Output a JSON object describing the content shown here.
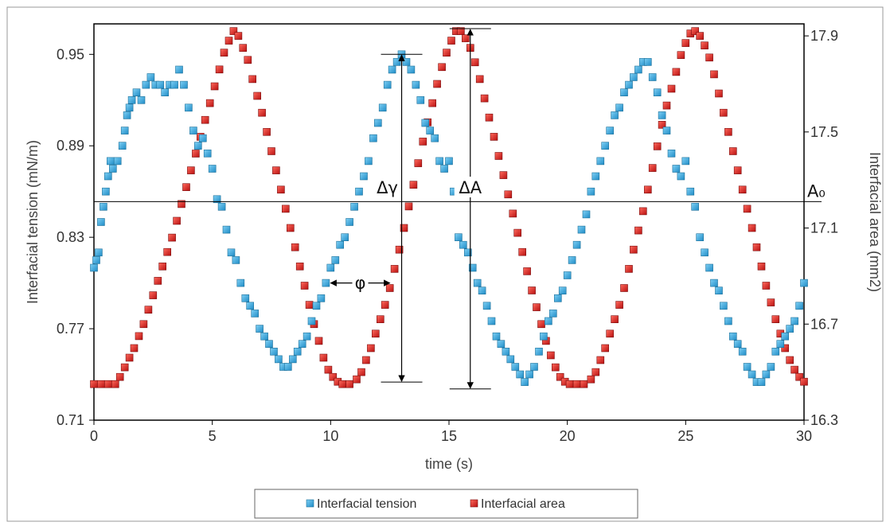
{
  "chart_data": {
    "type": "scatter",
    "xlabel": "time (s)",
    "ylabel_left": "Interfacial tension (mN/m)",
    "ylabel_right": "Interfacial area (mm2)",
    "xlim": [
      0,
      30
    ],
    "ylim_left": [
      0.71,
      0.97
    ],
    "ylim_right": [
      16.3,
      17.95
    ],
    "x_ticks": [
      "0",
      "5",
      "10",
      "15",
      "20",
      "25",
      "30"
    ],
    "y_ticks_left": [
      "0.71",
      "0.77",
      "0.83",
      "0.89",
      "0.95"
    ],
    "y_ticks_right": [
      "16.3",
      "16.7",
      "17.1",
      "17.5",
      "17.9"
    ],
    "grid": false,
    "legend_position": "bottom",
    "colors": {
      "tension": "#2a9fd8",
      "area": "#d42020"
    },
    "series": [
      {
        "name": "Interfacial tension",
        "axis": "left",
        "color": "#2a9fd8",
        "marker": "square",
        "period_s": 10,
        "points": [
          [
            0.0,
            0.81
          ],
          [
            0.1,
            0.815
          ],
          [
            0.2,
            0.82
          ],
          [
            0.3,
            0.84
          ],
          [
            0.4,
            0.85
          ],
          [
            0.5,
            0.86
          ],
          [
            0.6,
            0.87
          ],
          [
            0.7,
            0.88
          ],
          [
            0.8,
            0.875
          ],
          [
            1.0,
            0.88
          ],
          [
            1.2,
            0.89
          ],
          [
            1.3,
            0.9
          ],
          [
            1.4,
            0.91
          ],
          [
            1.5,
            0.915
          ],
          [
            1.6,
            0.92
          ],
          [
            1.8,
            0.925
          ],
          [
            2.0,
            0.92
          ],
          [
            2.2,
            0.93
          ],
          [
            2.4,
            0.935
          ],
          [
            2.6,
            0.93
          ],
          [
            2.8,
            0.93
          ],
          [
            3.0,
            0.925
          ],
          [
            3.2,
            0.93
          ],
          [
            3.4,
            0.93
          ],
          [
            3.6,
            0.94
          ],
          [
            3.8,
            0.93
          ],
          [
            4.0,
            0.915
          ],
          [
            4.2,
            0.9
          ],
          [
            4.4,
            0.89
          ],
          [
            4.6,
            0.895
          ],
          [
            4.8,
            0.885
          ],
          [
            5.0,
            0.875
          ],
          [
            5.2,
            0.855
          ],
          [
            5.4,
            0.85
          ],
          [
            5.6,
            0.835
          ],
          [
            5.8,
            0.82
          ],
          [
            6.0,
            0.815
          ],
          [
            6.2,
            0.8
          ],
          [
            6.4,
            0.79
          ],
          [
            6.6,
            0.785
          ],
          [
            6.8,
            0.78
          ],
          [
            7.0,
            0.77
          ],
          [
            7.2,
            0.765
          ],
          [
            7.4,
            0.76
          ],
          [
            7.6,
            0.755
          ],
          [
            7.8,
            0.75
          ],
          [
            8.0,
            0.745
          ],
          [
            8.2,
            0.745
          ],
          [
            8.4,
            0.75
          ],
          [
            8.6,
            0.755
          ],
          [
            8.8,
            0.76
          ],
          [
            9.0,
            0.765
          ],
          [
            9.2,
            0.775
          ],
          [
            9.4,
            0.785
          ],
          [
            9.6,
            0.79
          ],
          [
            9.8,
            0.8
          ],
          [
            10.0,
            0.81
          ],
          [
            10.2,
            0.815
          ],
          [
            10.4,
            0.825
          ],
          [
            10.6,
            0.83
          ],
          [
            10.8,
            0.84
          ],
          [
            11.0,
            0.85
          ],
          [
            11.2,
            0.86
          ],
          [
            11.4,
            0.87
          ],
          [
            11.6,
            0.88
          ],
          [
            11.8,
            0.895
          ],
          [
            12.0,
            0.905
          ],
          [
            12.2,
            0.915
          ],
          [
            12.4,
            0.93
          ],
          [
            12.6,
            0.94
          ],
          [
            12.8,
            0.945
          ],
          [
            13.0,
            0.95
          ],
          [
            13.2,
            0.945
          ],
          [
            13.4,
            0.94
          ],
          [
            13.6,
            0.93
          ],
          [
            13.8,
            0.92
          ],
          [
            14.0,
            0.905
          ],
          [
            14.2,
            0.9
          ],
          [
            14.4,
            0.895
          ],
          [
            14.6,
            0.88
          ],
          [
            14.8,
            0.875
          ],
          [
            15.0,
            0.88
          ],
          [
            15.2,
            0.86
          ],
          [
            15.4,
            0.83
          ],
          [
            15.6,
            0.825
          ],
          [
            15.8,
            0.82
          ],
          [
            16.0,
            0.81
          ],
          [
            16.2,
            0.8
          ],
          [
            16.4,
            0.795
          ],
          [
            16.6,
            0.785
          ],
          [
            16.8,
            0.775
          ],
          [
            17.0,
            0.765
          ],
          [
            17.2,
            0.76
          ],
          [
            17.4,
            0.755
          ],
          [
            17.6,
            0.75
          ],
          [
            17.8,
            0.745
          ],
          [
            18.0,
            0.74
          ],
          [
            18.2,
            0.735
          ],
          [
            18.4,
            0.74
          ],
          [
            18.6,
            0.745
          ],
          [
            18.8,
            0.755
          ],
          [
            19.0,
            0.765
          ],
          [
            19.2,
            0.775
          ],
          [
            19.4,
            0.78
          ],
          [
            19.6,
            0.79
          ],
          [
            19.8,
            0.795
          ],
          [
            20.0,
            0.805
          ],
          [
            20.2,
            0.815
          ],
          [
            20.4,
            0.825
          ],
          [
            20.6,
            0.835
          ],
          [
            20.8,
            0.845
          ],
          [
            21.0,
            0.86
          ],
          [
            21.2,
            0.87
          ],
          [
            21.4,
            0.88
          ],
          [
            21.6,
            0.89
          ],
          [
            21.8,
            0.9
          ],
          [
            22.0,
            0.91
          ],
          [
            22.2,
            0.915
          ],
          [
            22.4,
            0.925
          ],
          [
            22.6,
            0.93
          ],
          [
            22.8,
            0.935
          ],
          [
            23.0,
            0.94
          ],
          [
            23.2,
            0.945
          ],
          [
            23.4,
            0.945
          ],
          [
            23.6,
            0.935
          ],
          [
            23.8,
            0.925
          ],
          [
            24.0,
            0.91
          ],
          [
            24.2,
            0.9
          ],
          [
            24.4,
            0.885
          ],
          [
            24.6,
            0.875
          ],
          [
            24.8,
            0.87
          ],
          [
            25.0,
            0.88
          ],
          [
            25.2,
            0.86
          ],
          [
            25.4,
            0.85
          ],
          [
            25.6,
            0.83
          ],
          [
            25.8,
            0.82
          ],
          [
            26.0,
            0.81
          ],
          [
            26.2,
            0.8
          ],
          [
            26.4,
            0.795
          ],
          [
            26.6,
            0.785
          ],
          [
            26.8,
            0.775
          ],
          [
            27.0,
            0.765
          ],
          [
            27.2,
            0.76
          ],
          [
            27.4,
            0.755
          ],
          [
            27.6,
            0.745
          ],
          [
            27.8,
            0.74
          ],
          [
            28.0,
            0.735
          ],
          [
            28.2,
            0.735
          ],
          [
            28.4,
            0.74
          ],
          [
            28.6,
            0.745
          ],
          [
            28.8,
            0.755
          ],
          [
            29.0,
            0.76
          ],
          [
            29.2,
            0.765
          ],
          [
            29.4,
            0.77
          ],
          [
            29.6,
            0.775
          ],
          [
            29.8,
            0.785
          ],
          [
            30.0,
            0.8
          ]
        ]
      },
      {
        "name": "Interfacial area",
        "axis": "right",
        "color": "#d42020",
        "marker": "square",
        "period_s": 10,
        "points": [
          [
            0.0,
            16.45
          ],
          [
            0.3,
            16.45
          ],
          [
            0.6,
            16.45
          ],
          [
            0.9,
            16.45
          ],
          [
            1.1,
            16.48
          ],
          [
            1.3,
            16.52
          ],
          [
            1.5,
            16.56
          ],
          [
            1.7,
            16.6
          ],
          [
            1.9,
            16.65
          ],
          [
            2.1,
            16.7
          ],
          [
            2.3,
            16.76
          ],
          [
            2.5,
            16.82
          ],
          [
            2.7,
            16.88
          ],
          [
            2.9,
            16.94
          ],
          [
            3.1,
            17.0
          ],
          [
            3.3,
            17.06
          ],
          [
            3.5,
            17.13
          ],
          [
            3.7,
            17.2
          ],
          [
            3.9,
            17.27
          ],
          [
            4.1,
            17.34
          ],
          [
            4.3,
            17.41
          ],
          [
            4.5,
            17.48
          ],
          [
            4.7,
            17.55
          ],
          [
            4.9,
            17.62
          ],
          [
            5.1,
            17.69
          ],
          [
            5.3,
            17.76
          ],
          [
            5.5,
            17.83
          ],
          [
            5.7,
            17.88
          ],
          [
            5.9,
            17.92
          ],
          [
            6.1,
            17.9
          ],
          [
            6.3,
            17.85
          ],
          [
            6.5,
            17.8
          ],
          [
            6.7,
            17.72
          ],
          [
            6.9,
            17.65
          ],
          [
            7.1,
            17.58
          ],
          [
            7.3,
            17.5
          ],
          [
            7.5,
            17.42
          ],
          [
            7.7,
            17.34
          ],
          [
            7.9,
            17.26
          ],
          [
            8.1,
            17.18
          ],
          [
            8.3,
            17.1
          ],
          [
            8.5,
            17.02
          ],
          [
            8.7,
            16.94
          ],
          [
            8.9,
            16.86
          ],
          [
            9.1,
            16.78
          ],
          [
            9.3,
            16.7
          ],
          [
            9.5,
            16.63
          ],
          [
            9.7,
            16.56
          ],
          [
            9.9,
            16.51
          ],
          [
            10.1,
            16.48
          ],
          [
            10.3,
            16.46
          ],
          [
            10.5,
            16.45
          ],
          [
            10.8,
            16.45
          ],
          [
            11.1,
            16.47
          ],
          [
            11.3,
            16.5
          ],
          [
            11.5,
            16.55
          ],
          [
            11.7,
            16.6
          ],
          [
            11.9,
            16.66
          ],
          [
            12.1,
            16.72
          ],
          [
            12.3,
            16.78
          ],
          [
            12.5,
            16.85
          ],
          [
            12.7,
            16.93
          ],
          [
            12.9,
            17.01
          ],
          [
            13.1,
            17.1
          ],
          [
            13.3,
            17.19
          ],
          [
            13.5,
            17.28
          ],
          [
            13.7,
            17.37
          ],
          [
            13.9,
            17.46
          ],
          [
            14.1,
            17.54
          ],
          [
            14.3,
            17.62
          ],
          [
            14.5,
            17.7
          ],
          [
            14.7,
            17.77
          ],
          [
            14.9,
            17.83
          ],
          [
            15.1,
            17.88
          ],
          [
            15.3,
            17.92
          ],
          [
            15.5,
            17.92
          ],
          [
            15.7,
            17.89
          ],
          [
            15.9,
            17.85
          ],
          [
            16.1,
            17.79
          ],
          [
            16.3,
            17.72
          ],
          [
            16.5,
            17.64
          ],
          [
            16.7,
            17.56
          ],
          [
            16.9,
            17.48
          ],
          [
            17.1,
            17.4
          ],
          [
            17.3,
            17.32
          ],
          [
            17.5,
            17.24
          ],
          [
            17.7,
            17.16
          ],
          [
            17.9,
            17.08
          ],
          [
            18.1,
            17.0
          ],
          [
            18.3,
            16.92
          ],
          [
            18.5,
            16.84
          ],
          [
            18.7,
            16.77
          ],
          [
            18.9,
            16.7
          ],
          [
            19.1,
            16.63
          ],
          [
            19.3,
            16.57
          ],
          [
            19.5,
            16.52
          ],
          [
            19.7,
            16.48
          ],
          [
            19.9,
            16.46
          ],
          [
            20.1,
            16.45
          ],
          [
            20.4,
            16.45
          ],
          [
            20.7,
            16.45
          ],
          [
            21.0,
            16.47
          ],
          [
            21.2,
            16.5
          ],
          [
            21.4,
            16.55
          ],
          [
            21.6,
            16.6
          ],
          [
            21.8,
            16.66
          ],
          [
            22.0,
            16.72
          ],
          [
            22.2,
            16.78
          ],
          [
            22.4,
            16.85
          ],
          [
            22.6,
            16.93
          ],
          [
            22.8,
            17.01
          ],
          [
            23.0,
            17.09
          ],
          [
            23.2,
            17.17
          ],
          [
            23.4,
            17.26
          ],
          [
            23.6,
            17.35
          ],
          [
            23.8,
            17.44
          ],
          [
            24.0,
            17.53
          ],
          [
            24.2,
            17.61
          ],
          [
            24.4,
            17.68
          ],
          [
            24.6,
            17.75
          ],
          [
            24.8,
            17.82
          ],
          [
            25.0,
            17.87
          ],
          [
            25.2,
            17.91
          ],
          [
            25.4,
            17.92
          ],
          [
            25.6,
            17.9
          ],
          [
            25.8,
            17.86
          ],
          [
            26.0,
            17.81
          ],
          [
            26.2,
            17.74
          ],
          [
            26.4,
            17.66
          ],
          [
            26.6,
            17.58
          ],
          [
            26.8,
            17.5
          ],
          [
            27.0,
            17.42
          ],
          [
            27.2,
            17.34
          ],
          [
            27.4,
            17.26
          ],
          [
            27.6,
            17.18
          ],
          [
            27.8,
            17.1
          ],
          [
            28.0,
            17.02
          ],
          [
            28.2,
            16.94
          ],
          [
            28.4,
            16.86
          ],
          [
            28.6,
            16.79
          ],
          [
            28.8,
            16.72
          ],
          [
            29.0,
            16.66
          ],
          [
            29.2,
            16.6
          ],
          [
            29.4,
            16.55
          ],
          [
            29.6,
            16.51
          ],
          [
            29.8,
            16.48
          ],
          [
            30.0,
            16.46
          ]
        ]
      }
    ],
    "annotations": {
      "baseline_label": "A₀",
      "baseline_y_right": 17.21,
      "delta_gamma_label": "Δγ",
      "delta_area_label": "ΔA",
      "phase_label": "φ",
      "delta_gamma_x": 13.0,
      "delta_area_x": 15.9,
      "delta_gamma_range_left": [
        0.735,
        0.95
      ],
      "delta_area_range_right": [
        16.43,
        17.93
      ],
      "phase_x_range": [
        10.0,
        12.5
      ],
      "phase_y_left": 0.8
    }
  }
}
